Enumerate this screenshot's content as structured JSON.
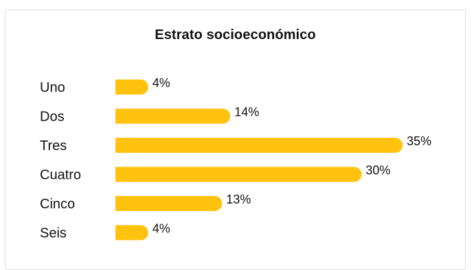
{
  "chart_data": {
    "type": "bar",
    "orientation": "horizontal",
    "title": "Estrato socioeconómico",
    "categories": [
      "Uno",
      "Dos",
      "Tres",
      "Cuatro",
      "Cinco",
      "Seis"
    ],
    "values": [
      4,
      14,
      35,
      30,
      13,
      4
    ],
    "value_labels": [
      "4%",
      "14%",
      "35%",
      "30%",
      "13%",
      "4%"
    ],
    "xlabel": "",
    "ylabel": "",
    "xlim": [
      0,
      35
    ],
    "grid": false,
    "legend": "none",
    "bar_color": "#FFC20E"
  }
}
